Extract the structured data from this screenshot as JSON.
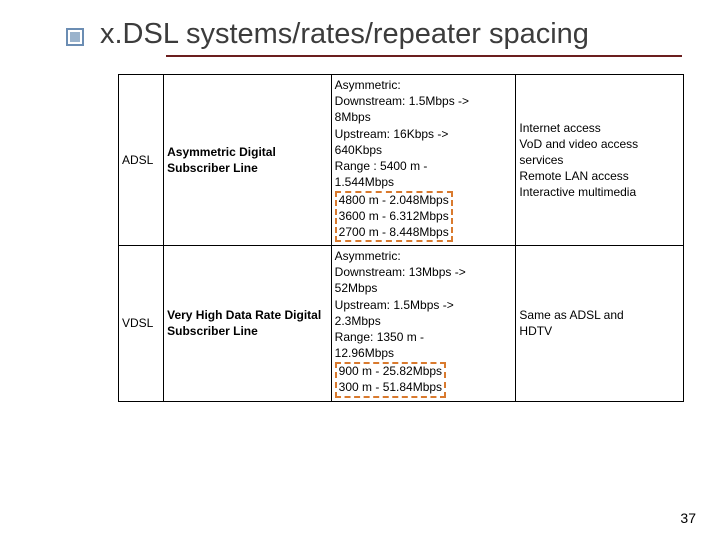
{
  "title": "x.DSL systems/rates/repeater spacing",
  "page_number": "37",
  "colors": {
    "rule": "#6b1e1e",
    "bullet_border": "#6b8db3",
    "bullet_fill": "#9ab3cc",
    "highlight_dash": "#d97a2e",
    "background": "#ffffff"
  },
  "rows": [
    {
      "abbr": "ADSL",
      "name": "Asymmetric Digital Subscriber Line",
      "specs_top": [
        "Asymmetric:",
        "Downstream: 1.5Mbps ->",
        "8Mbps",
        "Upstream: 16Kbps ->",
        "640Kbps",
        "Range : 5400 m -",
        "1.544Mbps"
      ],
      "specs_highlight": [
        "4800 m - 2.048Mbps",
        "3600 m - 6.312Mbps",
        "2700 m - 8.448Mbps"
      ],
      "apps": [
        "Internet access",
        "VoD and video access",
        "services",
        "Remote LAN access",
        "Interactive multimedia"
      ]
    },
    {
      "abbr": "VDSL",
      "name": "Very High Data Rate Digital Subscriber Line",
      "specs_top": [
        "Asymmetric:",
        "Downstream: 13Mbps ->",
        "52Mbps",
        "Upstream: 1.5Mbps ->",
        "2.3Mbps",
        "Range: 1350 m -",
        "12.96Mbps"
      ],
      "specs_highlight": [
        "900 m - 25.82Mbps",
        "300 m - 51.84Mbps"
      ],
      "apps": [
        "Same as ADSL and",
        "HDTV"
      ]
    }
  ]
}
